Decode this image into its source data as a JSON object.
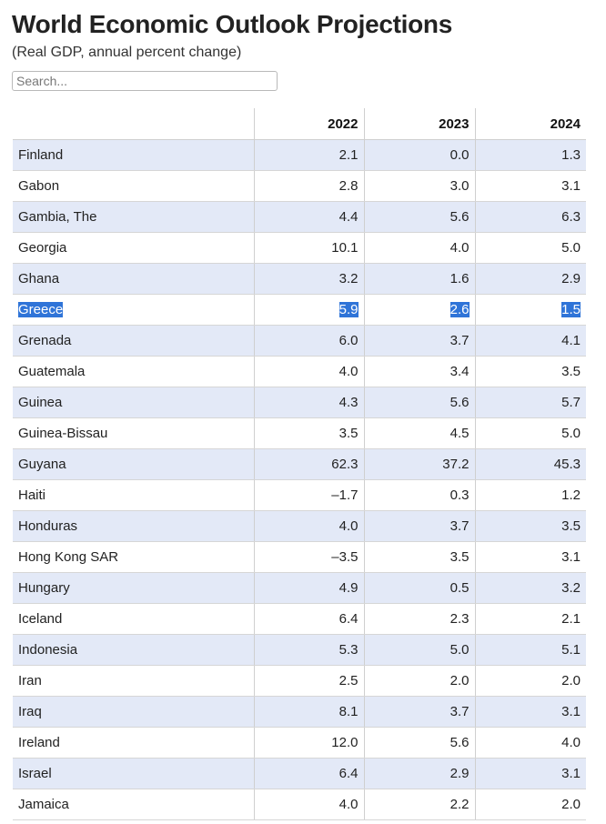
{
  "header": {
    "title": "World Economic Outlook Projections",
    "subtitle": "(Real GDP, annual percent change)"
  },
  "search": {
    "placeholder": "Search..."
  },
  "table": {
    "columns": [
      "",
      "2022",
      "2023",
      "2024"
    ],
    "selected_row": "Greece",
    "rows": [
      {
        "country": "Finland",
        "v2022": "2.1",
        "v2023": "0.0",
        "v2024": "1.3"
      },
      {
        "country": "Gabon",
        "v2022": "2.8",
        "v2023": "3.0",
        "v2024": "3.1"
      },
      {
        "country": "Gambia, The",
        "v2022": "4.4",
        "v2023": "5.6",
        "v2024": "6.3"
      },
      {
        "country": "Georgia",
        "v2022": "10.1",
        "v2023": "4.0",
        "v2024": "5.0"
      },
      {
        "country": "Ghana",
        "v2022": "3.2",
        "v2023": "1.6",
        "v2024": "2.9"
      },
      {
        "country": "Greece",
        "v2022": "5.9",
        "v2023": "2.6",
        "v2024": "1.5"
      },
      {
        "country": "Grenada",
        "v2022": "6.0",
        "v2023": "3.7",
        "v2024": "4.1"
      },
      {
        "country": "Guatemala",
        "v2022": "4.0",
        "v2023": "3.4",
        "v2024": "3.5"
      },
      {
        "country": "Guinea",
        "v2022": "4.3",
        "v2023": "5.6",
        "v2024": "5.7"
      },
      {
        "country": "Guinea-Bissau",
        "v2022": "3.5",
        "v2023": "4.5",
        "v2024": "5.0"
      },
      {
        "country": "Guyana",
        "v2022": "62.3",
        "v2023": "37.2",
        "v2024": "45.3"
      },
      {
        "country": "Haiti",
        "v2022": "–1.7",
        "v2023": "0.3",
        "v2024": "1.2"
      },
      {
        "country": "Honduras",
        "v2022": "4.0",
        "v2023": "3.7",
        "v2024": "3.5"
      },
      {
        "country": "Hong Kong SAR",
        "v2022": "–3.5",
        "v2023": "3.5",
        "v2024": "3.1"
      },
      {
        "country": "Hungary",
        "v2022": "4.9",
        "v2023": "0.5",
        "v2024": "3.2"
      },
      {
        "country": "Iceland",
        "v2022": "6.4",
        "v2023": "2.3",
        "v2024": "2.1"
      },
      {
        "country": "Indonesia",
        "v2022": "5.3",
        "v2023": "5.0",
        "v2024": "5.1"
      },
      {
        "country": "Iran",
        "v2022": "2.5",
        "v2023": "2.0",
        "v2024": "2.0"
      },
      {
        "country": "Iraq",
        "v2022": "8.1",
        "v2023": "3.7",
        "v2024": "3.1"
      },
      {
        "country": "Ireland",
        "v2022": "12.0",
        "v2023": "5.6",
        "v2024": "4.0"
      },
      {
        "country": "Israel",
        "v2022": "6.4",
        "v2023": "2.9",
        "v2024": "3.1"
      },
      {
        "country": "Jamaica",
        "v2022": "4.0",
        "v2023": "2.2",
        "v2024": "2.0"
      }
    ]
  },
  "colors": {
    "row_stripe": "#e3e9f7",
    "selection": "#2f74d8"
  }
}
